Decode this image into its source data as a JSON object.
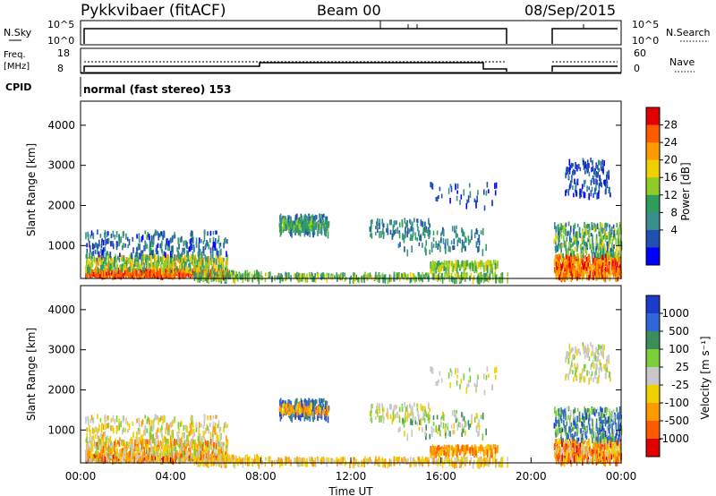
{
  "header": {
    "site": "Pykkvibaer (fitACF)",
    "beam": "Beam 00",
    "date": "08/Sep/2015"
  },
  "panels": {
    "nsky_label": "N.Sky",
    "nsky_ticks": [
      "10^5",
      "10^0"
    ],
    "nsearch_label": "N.Search",
    "nsearch_ticks": [
      "10^5",
      "10^0"
    ],
    "freq_label_line1": "Freq.",
    "freq_label_line2": "[MHz]",
    "freq_ticks": [
      "18",
      "8"
    ],
    "nave_label": "Nave",
    "nave_ticks": [
      "60",
      "0"
    ],
    "cpid_label": "CPID",
    "cpid_text": "normal (fast stereo) 153"
  },
  "chart_data": [
    {
      "type": "heatmap",
      "name": "power",
      "ylabel": "Slant Range [km]",
      "yticks": [
        1000,
        2000,
        3000,
        4000
      ],
      "ylim": [
        180,
        4600
      ],
      "xlim_hours": [
        0,
        24
      ],
      "colorbar": {
        "label": "Power [dB]",
        "ticks": [
          28,
          24,
          20,
          16,
          12,
          8,
          4
        ],
        "colors": [
          "#e00000",
          "#ff5a00",
          "#ff9a00",
          "#f0d000",
          "#8fcc2a",
          "#2e9c5a",
          "#3a8e8e",
          "#2050b0",
          "#0000ff"
        ]
      }
    },
    {
      "type": "heatmap",
      "name": "velocity",
      "ylabel": "Slant Range [km]",
      "xlabel": "Time UT",
      "xticks": [
        "00:00",
        "04:00",
        "08:00",
        "12:00",
        "16:00",
        "20:00",
        "00:00"
      ],
      "yticks": [
        1000,
        2000,
        3000,
        4000
      ],
      "ylim": [
        180,
        4600
      ],
      "xlim_hours": [
        0,
        24
      ],
      "colorbar": {
        "label": "Velocity [m s⁻¹]",
        "ticks": [
          "1000",
          "500",
          "100",
          "25",
          "-25",
          "-100",
          "-500",
          "-1000"
        ],
        "colors": [
          "#1a3cc8",
          "#2e68d8",
          "#3a8e5a",
          "#7ccf3a",
          "#c8c8c8",
          "#f0d000",
          "#ff9a00",
          "#ff5a00",
          "#e00000"
        ]
      }
    }
  ]
}
